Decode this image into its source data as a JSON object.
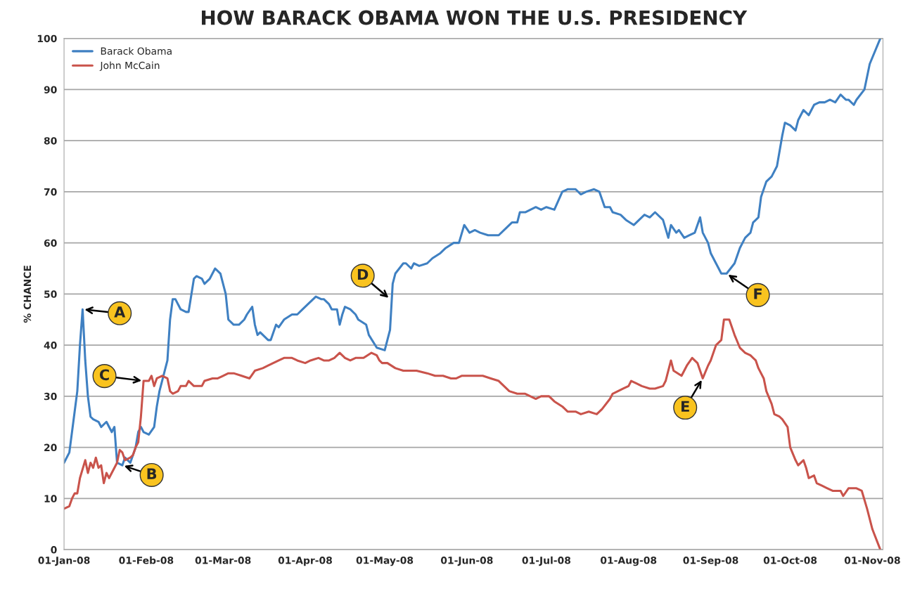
{
  "chart_data": {
    "type": "line",
    "title": "HOW BARACK OBAMA WON THE U.S. PRESIDENCY",
    "ylabel": "% CHANCE",
    "xlim": [
      "2008-01-01",
      "2008-11-05"
    ],
    "xticks": [
      {
        "value": "2008-01-01",
        "label": "01-Jan-08"
      },
      {
        "value": "2008-02-01",
        "label": "01-Feb-08"
      },
      {
        "value": "2008-03-01",
        "label": "01-Mar-08"
      },
      {
        "value": "2008-04-01",
        "label": "01-Apr-08"
      },
      {
        "value": "2008-05-01",
        "label": "01-May-08"
      },
      {
        "value": "2008-06-01",
        "label": "01-Jun-08"
      },
      {
        "value": "2008-07-01",
        "label": "01-Jul-08"
      },
      {
        "value": "2008-08-01",
        "label": "01-Aug-08"
      },
      {
        "value": "2008-09-01",
        "label": "01-Sep-08"
      },
      {
        "value": "2008-10-01",
        "label": "01-Oct-08"
      },
      {
        "value": "2008-11-01",
        "label": "01-Nov-08"
      }
    ],
    "ylim": [
      0,
      100
    ],
    "yticks": [
      0,
      10,
      20,
      30,
      40,
      50,
      60,
      70,
      80,
      90,
      100
    ],
    "grid": "y",
    "legend": "top left",
    "series": [
      {
        "name": "Barack Obama",
        "color": "#3f80c2",
        "x": [
          "2008-01-01",
          "2008-01-03",
          "2008-01-05",
          "2008-01-06",
          "2008-01-07",
          "2008-01-08",
          "2008-01-09",
          "2008-01-10",
          "2008-01-11",
          "2008-01-12",
          "2008-01-14",
          "2008-01-15",
          "2008-01-17",
          "2008-01-18",
          "2008-01-19",
          "2008-01-20",
          "2008-01-21",
          "2008-01-23",
          "2008-01-24",
          "2008-01-25",
          "2008-01-26",
          "2008-01-28",
          "2008-01-29",
          "2008-01-30",
          "2008-01-31",
          "2008-02-02",
          "2008-02-04",
          "2008-02-05",
          "2008-02-06",
          "2008-02-07",
          "2008-02-09",
          "2008-02-10",
          "2008-02-11",
          "2008-02-12",
          "2008-02-14",
          "2008-02-16",
          "2008-02-17",
          "2008-02-19",
          "2008-02-20",
          "2008-02-22",
          "2008-02-23",
          "2008-02-25",
          "2008-02-27",
          "2008-02-29",
          "2008-03-02",
          "2008-03-03",
          "2008-03-05",
          "2008-03-07",
          "2008-03-09",
          "2008-03-10",
          "2008-03-12",
          "2008-03-13",
          "2008-03-14",
          "2008-03-15",
          "2008-03-18",
          "2008-03-19",
          "2008-03-21",
          "2008-03-22",
          "2008-03-24",
          "2008-03-27",
          "2008-03-29",
          "2008-03-31",
          "2008-04-02",
          "2008-04-05",
          "2008-04-07",
          "2008-04-08",
          "2008-04-10",
          "2008-04-11",
          "2008-04-13",
          "2008-04-14",
          "2008-04-15",
          "2008-04-16",
          "2008-04-18",
          "2008-04-20",
          "2008-04-21",
          "2008-04-24",
          "2008-04-25",
          "2008-04-28",
          "2008-05-01",
          "2008-05-02",
          "2008-05-03",
          "2008-05-04",
          "2008-05-05",
          "2008-05-08",
          "2008-05-09",
          "2008-05-11",
          "2008-05-12",
          "2008-05-14",
          "2008-05-17",
          "2008-05-19",
          "2008-05-22",
          "2008-05-24",
          "2008-05-27",
          "2008-05-29",
          "2008-05-31",
          "2008-06-02",
          "2008-06-04",
          "2008-06-06",
          "2008-06-09",
          "2008-06-13",
          "2008-06-16",
          "2008-06-18",
          "2008-06-20",
          "2008-06-21",
          "2008-06-23",
          "2008-06-27",
          "2008-06-29",
          "2008-07-01",
          "2008-07-04",
          "2008-07-07",
          "2008-07-09",
          "2008-07-12",
          "2008-07-14",
          "2008-07-16",
          "2008-07-19",
          "2008-07-21",
          "2008-07-23",
          "2008-07-25",
          "2008-07-26",
          "2008-07-29",
          "2008-07-31",
          "2008-08-03",
          "2008-08-05",
          "2008-08-07",
          "2008-08-09",
          "2008-08-11",
          "2008-08-14",
          "2008-08-16",
          "2008-08-17",
          "2008-08-19",
          "2008-08-20",
          "2008-08-22",
          "2008-08-24",
          "2008-08-26",
          "2008-08-28",
          "2008-08-29",
          "2008-08-31",
          "2008-09-01",
          "2008-09-03",
          "2008-09-05",
          "2008-09-07",
          "2008-09-10",
          "2008-09-12",
          "2008-09-14",
          "2008-09-16",
          "2008-09-17",
          "2008-09-19",
          "2008-09-20",
          "2008-09-22",
          "2008-09-24",
          "2008-09-26",
          "2008-09-28",
          "2008-09-29",
          "2008-10-01",
          "2008-10-03",
          "2008-10-04",
          "2008-10-06",
          "2008-10-08",
          "2008-10-10",
          "2008-10-12",
          "2008-10-14",
          "2008-10-16",
          "2008-10-18",
          "2008-10-20",
          "2008-10-22",
          "2008-10-23",
          "2008-10-25",
          "2008-10-26",
          "2008-10-29",
          "2008-10-31",
          "2008-11-04"
        ],
        "values": [
          17,
          19,
          27,
          31,
          40,
          47,
          37,
          30,
          26,
          25.5,
          25,
          24,
          25,
          24,
          23,
          24,
          17,
          16.5,
          18,
          17.5,
          17,
          20,
          23,
          24,
          23,
          22.5,
          24,
          28,
          31,
          33,
          37,
          45,
          49,
          49,
          47,
          46.5,
          46.5,
          53,
          53.5,
          53,
          52,
          53,
          55,
          54,
          50,
          45,
          44,
          44,
          45,
          46,
          47.5,
          44,
          42,
          42.5,
          41,
          41,
          44,
          43.5,
          45,
          46,
          46,
          47,
          48,
          49.5,
          49,
          49,
          48,
          47,
          47,
          44,
          46,
          47.5,
          47,
          46,
          45,
          44,
          42,
          39.5,
          39,
          41,
          43,
          52,
          54,
          56,
          56,
          55,
          56,
          55.5,
          56,
          57,
          58,
          59,
          60,
          60,
          63.5,
          62,
          62.5,
          62,
          61.5,
          61.5,
          63,
          64,
          64,
          66,
          66,
          67,
          66.5,
          67,
          66.5,
          70,
          70.5,
          70.5,
          69.5,
          70,
          70.5,
          70,
          67,
          67,
          66,
          65.5,
          64.5,
          63.5,
          64.5,
          65.5,
          65,
          66,
          64.5,
          61,
          63.5,
          62,
          62.5,
          61,
          61.5,
          62,
          65,
          62,
          60,
          58,
          56,
          54,
          54,
          56,
          59,
          61,
          62,
          64,
          65,
          69,
          72,
          73,
          75,
          81,
          83.5,
          83,
          82,
          84,
          86,
          85,
          87,
          87.5,
          87.5,
          88,
          87.5,
          89,
          88,
          88,
          87,
          88,
          90,
          95,
          100
        ]
      },
      {
        "name": "John McCain",
        "color": "#c9534b",
        "x": [
          "2008-01-01",
          "2008-01-03",
          "2008-01-04",
          "2008-01-05",
          "2008-01-06",
          "2008-01-07",
          "2008-01-09",
          "2008-01-10",
          "2008-01-11",
          "2008-01-12",
          "2008-01-13",
          "2008-01-14",
          "2008-01-15",
          "2008-01-16",
          "2008-01-17",
          "2008-01-18",
          "2008-01-20",
          "2008-01-21",
          "2008-01-22",
          "2008-01-23",
          "2008-01-24",
          "2008-01-26",
          "2008-01-27",
          "2008-01-28",
          "2008-01-29",
          "2008-01-30",
          "2008-01-31",
          "2008-02-02",
          "2008-02-03",
          "2008-02-04",
          "2008-02-05",
          "2008-02-07",
          "2008-02-09",
          "2008-02-10",
          "2008-02-11",
          "2008-02-13",
          "2008-02-14",
          "2008-02-16",
          "2008-02-17",
          "2008-02-19",
          "2008-02-22",
          "2008-02-23",
          "2008-02-26",
          "2008-02-28",
          "2008-03-01",
          "2008-03-03",
          "2008-03-05",
          "2008-03-08",
          "2008-03-11",
          "2008-03-13",
          "2008-03-16",
          "2008-03-18",
          "2008-03-22",
          "2008-03-24",
          "2008-03-27",
          "2008-03-29",
          "2008-04-01",
          "2008-04-03",
          "2008-04-06",
          "2008-04-08",
          "2008-04-10",
          "2008-04-12",
          "2008-04-14",
          "2008-04-16",
          "2008-04-18",
          "2008-04-20",
          "2008-04-23",
          "2008-04-26",
          "2008-04-28",
          "2008-04-29",
          "2008-04-30",
          "2008-05-02",
          "2008-05-05",
          "2008-05-08",
          "2008-05-10",
          "2008-05-13",
          "2008-05-17",
          "2008-05-20",
          "2008-05-23",
          "2008-05-26",
          "2008-05-28",
          "2008-05-30",
          "2008-06-02",
          "2008-06-07",
          "2008-06-10",
          "2008-06-13",
          "2008-06-17",
          "2008-06-20",
          "2008-06-23",
          "2008-06-27",
          "2008-06-29",
          "2008-07-02",
          "2008-07-04",
          "2008-07-07",
          "2008-07-09",
          "2008-07-12",
          "2008-07-14",
          "2008-07-17",
          "2008-07-20",
          "2008-07-22",
          "2008-07-25",
          "2008-07-26",
          "2008-07-28",
          "2008-07-30",
          "2008-08-01",
          "2008-08-02",
          "2008-08-04",
          "2008-08-06",
          "2008-08-09",
          "2008-08-11",
          "2008-08-14",
          "2008-08-15",
          "2008-08-17",
          "2008-08-18",
          "2008-08-21",
          "2008-08-23",
          "2008-08-25",
          "2008-08-27",
          "2008-08-28",
          "2008-08-29",
          "2008-08-31",
          "2008-09-01",
          "2008-09-03",
          "2008-09-05",
          "2008-09-06",
          "2008-09-08",
          "2008-09-10",
          "2008-09-12",
          "2008-09-14",
          "2008-09-16",
          "2008-09-18",
          "2008-09-19",
          "2008-09-21",
          "2008-09-22",
          "2008-09-24",
          "2008-09-25",
          "2008-09-27",
          "2008-09-28",
          "2008-09-30",
          "2008-10-01",
          "2008-10-03",
          "2008-10-04",
          "2008-10-06",
          "2008-10-07",
          "2008-10-08",
          "2008-10-10",
          "2008-10-11",
          "2008-10-13",
          "2008-10-15",
          "2008-10-17",
          "2008-10-20",
          "2008-10-21",
          "2008-10-23",
          "2008-10-26",
          "2008-10-28",
          "2008-10-30",
          "2008-11-01",
          "2008-11-04"
        ],
        "values": [
          8,
          8.5,
          10,
          11,
          11,
          14,
          17.5,
          15,
          17,
          16,
          18,
          16,
          16.5,
          13,
          15,
          14,
          16,
          17,
          19.5,
          19,
          17.5,
          18,
          18.5,
          20,
          21,
          26,
          33,
          33,
          34,
          32,
          33.5,
          34,
          33.5,
          31,
          30.5,
          31,
          32,
          32,
          33,
          32,
          32,
          33,
          33.5,
          33.5,
          34,
          34.5,
          34.5,
          34,
          33.5,
          35,
          35.5,
          36,
          37,
          37.5,
          37.5,
          37,
          36.5,
          37,
          37.5,
          37,
          37,
          37.5,
          38.5,
          37.5,
          37,
          37.5,
          37.5,
          38.5,
          38,
          37,
          36.5,
          36.5,
          35.5,
          35,
          35,
          35,
          34.5,
          34,
          34,
          33.5,
          33.5,
          34,
          34,
          34,
          33.5,
          33,
          31,
          30.5,
          30.5,
          29.5,
          30,
          30,
          29,
          28,
          27,
          27,
          26.5,
          27,
          26.5,
          27.5,
          29.5,
          30.5,
          31,
          31.5,
          32,
          33,
          32.5,
          32,
          31.5,
          31.5,
          32,
          33,
          37,
          35,
          34,
          36,
          37.5,
          36.5,
          35,
          33.5,
          36,
          37,
          40,
          41,
          45,
          45,
          42,
          39.5,
          38.5,
          38,
          37,
          35.5,
          33.5,
          31,
          28.5,
          26.5,
          26,
          25.5,
          24,
          20,
          17.5,
          16.5,
          17.5,
          16,
          14,
          14.5,
          13,
          12.5,
          12,
          11.5,
          11.5,
          10.5,
          12,
          12,
          11.5,
          8,
          4,
          0
        ]
      }
    ],
    "annotations": [
      {
        "text": "A",
        "x": "2008-01-08",
        "y": 47
      },
      {
        "text": "B",
        "x": "2008-01-23",
        "y": 16.5
      },
      {
        "text": "C",
        "x": "2008-01-31",
        "y": 33
      },
      {
        "text": "D",
        "x": "2008-05-03",
        "y": 49
      },
      {
        "text": "E",
        "x": "2008-08-29",
        "y": 33.5
      },
      {
        "text": "F",
        "x": "2008-09-07",
        "y": 54
      }
    ]
  }
}
